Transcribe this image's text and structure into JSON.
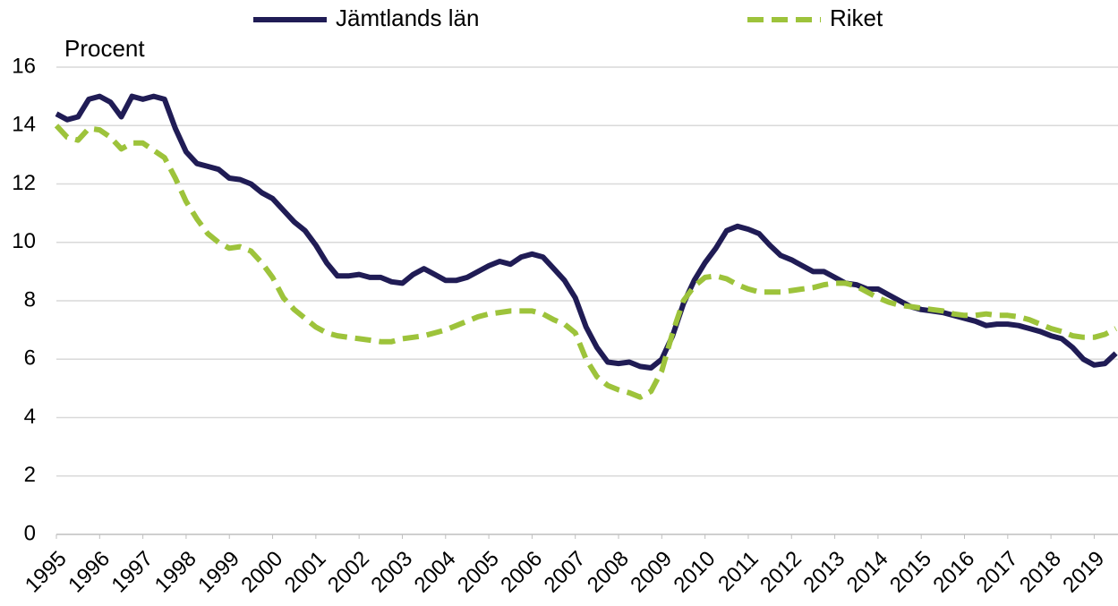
{
  "chart_data": {
    "type": "line",
    "y_axis_label": "Procent",
    "x": [
      1995,
      1995.25,
      1995.5,
      1995.75,
      1996,
      1996.25,
      1996.5,
      1996.75,
      1997,
      1997.25,
      1997.5,
      1997.75,
      1998,
      1998.25,
      1998.5,
      1998.75,
      1999,
      1999.25,
      1999.5,
      1999.75,
      2000,
      2000.25,
      2000.5,
      2000.75,
      2001,
      2001.25,
      2001.5,
      2001.75,
      2002,
      2002.25,
      2002.5,
      2002.75,
      2003,
      2003.25,
      2003.5,
      2003.75,
      2004,
      2004.25,
      2004.5,
      2004.75,
      2005,
      2005.25,
      2005.5,
      2005.75,
      2006,
      2006.25,
      2006.5,
      2006.75,
      2007,
      2007.25,
      2007.5,
      2007.75,
      2008,
      2008.25,
      2008.5,
      2008.75,
      2009,
      2009.25,
      2009.5,
      2009.75,
      2010,
      2010.25,
      2010.5,
      2010.75,
      2011,
      2011.25,
      2011.5,
      2011.75,
      2012,
      2012.25,
      2012.5,
      2012.75,
      2013,
      2013.25,
      2013.5,
      2013.75,
      2014,
      2014.25,
      2014.5,
      2014.75,
      2015,
      2015.25,
      2015.5,
      2015.75,
      2016,
      2016.25,
      2016.5,
      2016.75,
      2017,
      2017.25,
      2017.5,
      2017.75,
      2018,
      2018.25,
      2018.5,
      2018.75,
      2019,
      2019.25,
      2019.5
    ],
    "series": [
      {
        "name": "Jämtlands län",
        "color": "#201c55",
        "dashed": false,
        "values": [
          14.4,
          14.2,
          14.3,
          14.9,
          15.0,
          14.8,
          14.3,
          15.0,
          14.9,
          15.0,
          14.9,
          13.9,
          13.1,
          12.7,
          12.6,
          12.5,
          12.2,
          12.15,
          12.0,
          11.7,
          11.5,
          11.1,
          10.7,
          10.4,
          9.9,
          9.3,
          8.85,
          8.85,
          8.9,
          8.8,
          8.8,
          8.65,
          8.6,
          8.9,
          9.1,
          8.9,
          8.7,
          8.7,
          8.8,
          9.0,
          9.2,
          9.35,
          9.25,
          9.5,
          9.6,
          9.5,
          9.1,
          8.7,
          8.1,
          7.1,
          6.4,
          5.9,
          5.85,
          5.9,
          5.75,
          5.7,
          6.0,
          6.8,
          7.9,
          8.7,
          9.3,
          9.8,
          10.4,
          10.55,
          10.45,
          10.3,
          9.9,
          9.55,
          9.4,
          9.2,
          9.0,
          9.0,
          8.8,
          8.6,
          8.55,
          8.4,
          8.4,
          8.2,
          8.0,
          7.8,
          7.7,
          7.65,
          7.6,
          7.5,
          7.4,
          7.3,
          7.15,
          7.2,
          7.2,
          7.15,
          7.05,
          6.95,
          6.8,
          6.7,
          6.4,
          6.0,
          5.8,
          5.85,
          6.2
        ]
      },
      {
        "name": "Riket",
        "color": "#9dc33b",
        "dashed": true,
        "values": [
          14.0,
          13.6,
          13.5,
          13.9,
          13.85,
          13.6,
          13.2,
          13.4,
          13.4,
          13.15,
          12.9,
          12.2,
          11.4,
          10.8,
          10.3,
          10.0,
          9.8,
          9.85,
          9.7,
          9.3,
          8.8,
          8.1,
          7.7,
          7.4,
          7.1,
          6.9,
          6.8,
          6.75,
          6.7,
          6.65,
          6.6,
          6.6,
          6.7,
          6.75,
          6.8,
          6.9,
          7.0,
          7.15,
          7.3,
          7.45,
          7.55,
          7.6,
          7.65,
          7.65,
          7.65,
          7.55,
          7.35,
          7.2,
          6.9,
          6.0,
          5.4,
          5.1,
          4.95,
          4.85,
          4.7,
          4.9,
          5.6,
          6.9,
          8.0,
          8.5,
          8.8,
          8.85,
          8.75,
          8.55,
          8.4,
          8.3,
          8.3,
          8.3,
          8.35,
          8.4,
          8.45,
          8.55,
          8.6,
          8.6,
          8.5,
          8.3,
          8.1,
          7.95,
          7.85,
          7.8,
          7.75,
          7.7,
          7.65,
          7.55,
          7.5,
          7.5,
          7.55,
          7.5,
          7.5,
          7.45,
          7.35,
          7.2,
          7.05,
          6.95,
          6.8,
          6.75,
          6.75,
          6.85,
          7.05
        ]
      }
    ],
    "xlim": [
      1995,
      2019.55
    ],
    "xticks": [
      1995,
      1996,
      1997,
      1998,
      1999,
      2000,
      2001,
      2002,
      2003,
      2004,
      2005,
      2006,
      2007,
      2008,
      2009,
      2010,
      2011,
      2012,
      2013,
      2014,
      2015,
      2016,
      2017,
      2018,
      2019
    ],
    "ylim": [
      0,
      16
    ],
    "yticks": [
      0,
      2,
      4,
      6,
      8,
      10,
      12,
      14,
      16
    ],
    "grid": true,
    "legend": "top"
  }
}
